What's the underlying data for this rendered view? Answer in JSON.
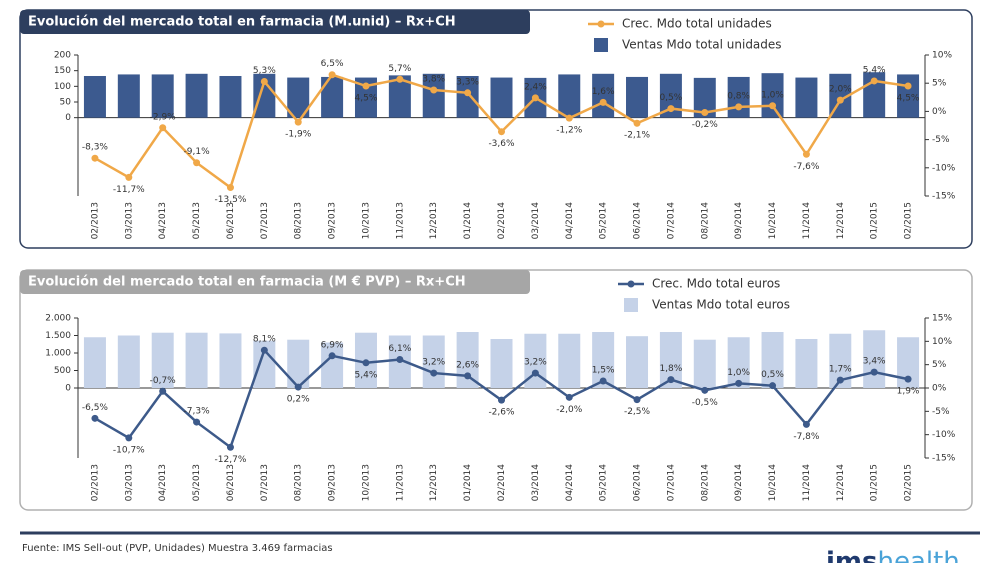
{
  "chart_data": [
    {
      "type": "combo",
      "title": "Evolución del mercado total en farmacia (M.unid) – Rx+CH",
      "categories": [
        "02/2013",
        "03/2013",
        "04/2013",
        "05/2013",
        "06/2013",
        "07/2013",
        "08/2013",
        "09/2013",
        "10/2013",
        "11/2013",
        "12/2013",
        "01/2014",
        "02/2014",
        "03/2014",
        "04/2014",
        "05/2014",
        "06/2014",
        "07/2014",
        "08/2014",
        "09/2014",
        "10/2014",
        "11/2014",
        "12/2014",
        "01/2015",
        "02/2015"
      ],
      "series": [
        {
          "name": "Crec. Mdo total unidades",
          "type": "line",
          "axis": "y2",
          "color": "#f0a848",
          "values": [
            -8.3,
            -11.7,
            -2.9,
            -9.1,
            -13.5,
            5.3,
            -1.9,
            6.5,
            4.5,
            5.7,
            3.8,
            3.3,
            -3.6,
            2.4,
            -1.2,
            1.6,
            -2.1,
            0.5,
            -0.2,
            0.8,
            1.0,
            -7.6,
            2.0,
            5.4,
            4.5
          ],
          "value_labels": [
            "-8,3%",
            "-11,7%",
            "-2,9%",
            "-9,1%",
            "-13,5%",
            "5,3%",
            "-1,9%",
            "6,5%",
            "4,5%",
            "5,7%",
            "3,8%",
            "3,3%",
            "-3,6%",
            "2,4%",
            "-1,2%",
            "1,6%",
            "-2,1%",
            "0,5%",
            "-0,2%",
            "0,8%",
            "1,0%",
            "-7,6%",
            "2,0%",
            "5,4%",
            "4,5%"
          ]
        },
        {
          "name": "Ventas Mdo total unidades",
          "type": "bar",
          "color": "#3c5a8f",
          "values": [
            133,
            138,
            138,
            140,
            133,
            140,
            128,
            130,
            128,
            135,
            140,
            133,
            128,
            127,
            138,
            140,
            130,
            140,
            127,
            130,
            142,
            128,
            140,
            145,
            138
          ]
        }
      ],
      "ylim": [
        -250,
        200
      ],
      "yticks": [
        0,
        50,
        100,
        150,
        200
      ],
      "y2lim": [
        -15,
        10
      ],
      "y2ticks": [
        {
          "value": 10,
          "label": "10%"
        },
        {
          "value": 5,
          "label": "5%"
        },
        {
          "value": 0,
          "label": "0%"
        },
        {
          "value": -5,
          "label": "-5%"
        },
        {
          "value": -10,
          "label": "-10%"
        },
        {
          "value": -15,
          "label": "-15%"
        }
      ]
    },
    {
      "type": "combo",
      "title": "Evolución del mercado total en farmacia (M € PVP) – Rx+CH",
      "categories": [
        "02/2013",
        "03/2013",
        "04/2013",
        "05/2013",
        "06/2013",
        "07/2013",
        "08/2013",
        "09/2013",
        "10/2013",
        "11/2013",
        "12/2013",
        "01/2014",
        "02/2014",
        "03/2014",
        "04/2014",
        "05/2014",
        "06/2014",
        "07/2014",
        "08/2014",
        "09/2014",
        "10/2014",
        "11/2014",
        "12/2014",
        "01/2015",
        "02/2015"
      ],
      "series": [
        {
          "name": "Crec. Mdo total euros",
          "type": "line",
          "axis": "y2",
          "color": "#3d5a8a",
          "values": [
            -6.5,
            -10.7,
            -0.7,
            -7.3,
            -12.7,
            8.1,
            0.2,
            6.9,
            5.4,
            6.1,
            3.2,
            2.6,
            -2.6,
            3.2,
            -2.0,
            1.5,
            -2.5,
            1.8,
            -0.5,
            1.0,
            0.5,
            -7.8,
            1.7,
            3.4,
            1.9
          ],
          "value_labels": [
            "-6,5%",
            "-10,7%",
            "-0,7%",
            "-7,3%",
            "-12,7%",
            "8,1%",
            "0,2%",
            "6,9%",
            "5,4%",
            "6,1%",
            "3,2%",
            "2,6%",
            "-2,6%",
            "3,2%",
            "-2,0%",
            "1,5%",
            "-2,5%",
            "1,8%",
            "-0,5%",
            "1,0%",
            "0,5%",
            "-7,8%",
            "1,7%",
            "3,4%",
            "1,9%"
          ]
        },
        {
          "name": "Ventas Mdo total euros",
          "type": "bar",
          "color": "#c5d2e8",
          "values": [
            1450,
            1500,
            1580,
            1580,
            1560,
            1350,
            1380,
            1300,
            1580,
            1500,
            1500,
            1600,
            1400,
            1550,
            1550,
            1600,
            1480,
            1600,
            1380,
            1450,
            1600,
            1400,
            1550,
            1650,
            1450
          ]
        }
      ],
      "ylim": [
        -2000,
        2000
      ],
      "yticks": [
        0,
        500,
        {
          "value": 1000,
          "label": "1.000"
        },
        {
          "value": 1500,
          "label": "1.500"
        },
        {
          "value": 2000,
          "label": "2.000"
        }
      ],
      "y2lim": [
        -15,
        15
      ],
      "y2ticks": [
        {
          "value": 15,
          "label": "15%"
        },
        {
          "value": 10,
          "label": "10%"
        },
        {
          "value": 5,
          "label": "5%"
        },
        {
          "value": 0,
          "label": "0%"
        },
        {
          "value": -5,
          "label": "-5%"
        },
        {
          "value": -10,
          "label": "-10%"
        },
        {
          "value": -15,
          "label": "-15%"
        }
      ]
    }
  ],
  "footer": {
    "source": "Fuente: IMS Sell-out (PVP, Unidades) Muestra 3.469  farmacias",
    "logo_bold": "ims",
    "logo_light": "health"
  }
}
